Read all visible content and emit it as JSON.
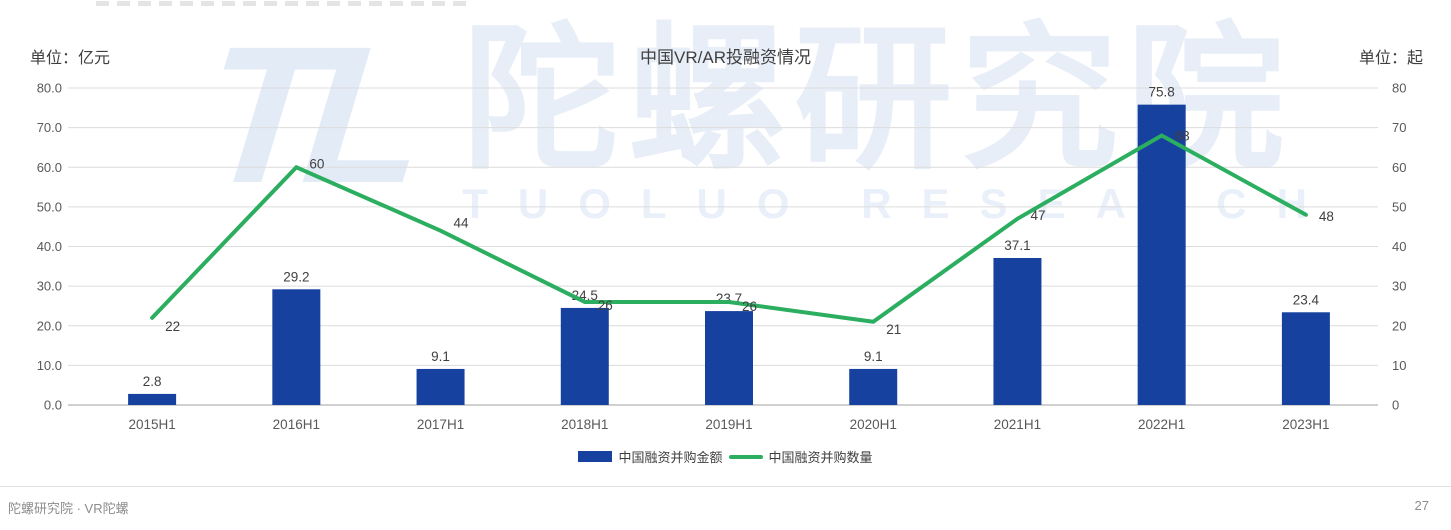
{
  "page": {
    "footer_left": "陀螺研究院 · VR陀螺",
    "page_number": "27"
  },
  "watermark": {
    "logo": "TL",
    "cn": "陀螺研究院",
    "en": "TUOLUO RESEARCH"
  },
  "chart_data": {
    "type": "bar",
    "combo": "bar+line",
    "title": "中国VR/AR投融资情况",
    "left_unit": "单位：亿元",
    "right_unit": "单位：起",
    "categories": [
      "2015H1",
      "2016H1",
      "2017H1",
      "2018H1",
      "2019H1",
      "2020H1",
      "2021H1",
      "2022H1",
      "2023H1"
    ],
    "series": [
      {
        "name": "中国融资并购金额",
        "type": "bar",
        "axis": "left",
        "color": "#16419F",
        "values": [
          2.8,
          29.2,
          9.1,
          24.5,
          23.7,
          9.1,
          37.1,
          75.8,
          23.4
        ],
        "labels": [
          "2.8",
          "29.2",
          "9.1",
          "24.5",
          "23.7",
          "9.1",
          "37.1",
          "75.8",
          "23.4"
        ]
      },
      {
        "name": "中国融资并购数量",
        "type": "line",
        "axis": "right",
        "color": "#2BAE5F",
        "values": [
          22,
          60,
          44,
          26,
          26,
          21,
          47,
          68,
          48
        ],
        "labels": [
          "22",
          "60",
          "44",
          "26",
          "26",
          "21",
          "47",
          "68",
          "48"
        ]
      }
    ],
    "left_axis": {
      "min": 0,
      "max": 80,
      "ticks": [
        "0.0",
        "10.0",
        "20.0",
        "30.0",
        "40.0",
        "50.0",
        "60.0",
        "70.0",
        "80.0"
      ]
    },
    "right_axis": {
      "min": 0,
      "max": 80,
      "ticks": [
        "0",
        "10",
        "20",
        "30",
        "40",
        "50",
        "60",
        "70",
        "80"
      ]
    },
    "grid": true,
    "legend_position": "bottom",
    "colors": {
      "gridline": "#DCDCDC",
      "baseline": "#B5B5B5",
      "tick_text": "#595959",
      "data_label": "#404040"
    }
  }
}
